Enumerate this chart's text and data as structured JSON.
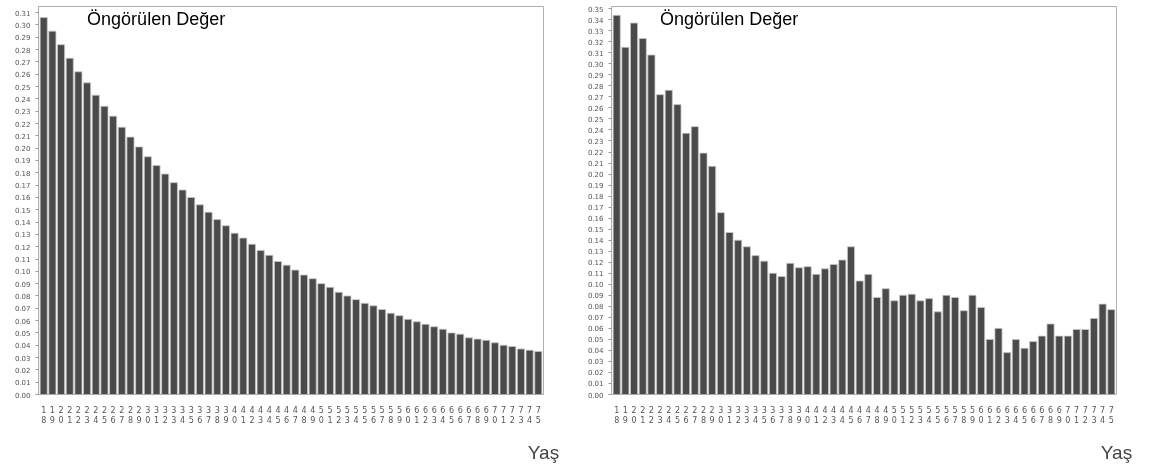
{
  "chart_data": [
    {
      "type": "bar",
      "annotations": [
        "Öngörülen Değer"
      ],
      "xlabel": "Yaş",
      "color": "#4a4a4a",
      "grid": false,
      "categories": [
        "18",
        "19",
        "20",
        "21",
        "22",
        "23",
        "24",
        "25",
        "26",
        "27",
        "28",
        "29",
        "30",
        "31",
        "32",
        "33",
        "34",
        "35",
        "36",
        "37",
        "38",
        "39",
        "40",
        "41",
        "42",
        "43",
        "44",
        "45",
        "46",
        "47",
        "48",
        "49",
        "50",
        "51",
        "52",
        "53",
        "54",
        "55",
        "56",
        "57",
        "58",
        "59",
        "60",
        "61",
        "62",
        "63",
        "64",
        "65",
        "66",
        "67",
        "68",
        "69",
        "70",
        "71",
        "72",
        "73",
        "74",
        "75"
      ],
      "values": [
        0.306,
        0.295,
        0.284,
        0.273,
        0.262,
        0.253,
        0.243,
        0.234,
        0.226,
        0.217,
        0.209,
        0.201,
        0.193,
        0.186,
        0.179,
        0.172,
        0.166,
        0.16,
        0.154,
        0.148,
        0.142,
        0.137,
        0.131,
        0.127,
        0.122,
        0.117,
        0.113,
        0.108,
        0.105,
        0.101,
        0.097,
        0.094,
        0.09,
        0.087,
        0.083,
        0.08,
        0.077,
        0.074,
        0.072,
        0.069,
        0.066,
        0.064,
        0.061,
        0.059,
        0.057,
        0.055,
        0.053,
        0.05,
        0.049,
        0.046,
        0.045,
        0.044,
        0.042,
        0.04,
        0.039,
        0.037,
        0.036,
        0.035
      ],
      "ylim": [
        0,
        0.315
      ],
      "yticks": [
        {
          "value": 0,
          "label": "0.00"
        },
        {
          "value": 0.01,
          "label": "0.01"
        },
        {
          "value": 0.02,
          "label": "0.02"
        },
        {
          "value": 0.03,
          "label": "0.03"
        },
        {
          "value": 0.04,
          "label": "0.04"
        },
        {
          "value": 0.05,
          "label": "0.05"
        },
        {
          "value": 0.06,
          "label": "0.06"
        },
        {
          "value": 0.07,
          "label": "0.07"
        },
        {
          "value": 0.08,
          "label": "0.08"
        },
        {
          "value": 0.09,
          "label": "0.09"
        },
        {
          "value": 0.1,
          "label": "0.10"
        },
        {
          "value": 0.11,
          "label": "0.11"
        },
        {
          "value": 0.12,
          "label": "0.12"
        },
        {
          "value": 0.13,
          "label": "0.13"
        },
        {
          "value": 0.14,
          "label": "0.14"
        },
        {
          "value": 0.15,
          "label": "0.15"
        },
        {
          "value": 0.16,
          "label": "0.16"
        },
        {
          "value": 0.17,
          "label": "0.17"
        },
        {
          "value": 0.18,
          "label": "0.18"
        },
        {
          "value": 0.19,
          "label": "0.19"
        },
        {
          "value": 0.2,
          "label": "0.20"
        },
        {
          "value": 0.21,
          "label": "0.21"
        },
        {
          "value": 0.22,
          "label": "0.22"
        },
        {
          "value": 0.23,
          "label": "0.23"
        },
        {
          "value": 0.24,
          "label": "0.24"
        },
        {
          "value": 0.25,
          "label": "0.25"
        },
        {
          "value": 0.26,
          "label": "0.26"
        },
        {
          "value": 0.27,
          "label": "0.27"
        },
        {
          "value": 0.28,
          "label": "0.28"
        },
        {
          "value": 0.29,
          "label": "0.29"
        },
        {
          "value": 0.3,
          "label": "0.30"
        },
        {
          "value": 0.31,
          "label": "0.31"
        }
      ]
    },
    {
      "type": "bar",
      "annotations": [
        "Öngörülen Değer"
      ],
      "xlabel": "Yaş",
      "color": "#4a4a4a",
      "grid": false,
      "categories": [
        "18",
        "19",
        "20",
        "21",
        "22",
        "23",
        "24",
        "25",
        "26",
        "27",
        "28",
        "29",
        "30",
        "31",
        "32",
        "33",
        "34",
        "35",
        "36",
        "37",
        "38",
        "39",
        "40",
        "41",
        "42",
        "43",
        "44",
        "45",
        "46",
        "47",
        "48",
        "49",
        "50",
        "51",
        "52",
        "53",
        "54",
        "55",
        "56",
        "57",
        "58",
        "59",
        "60",
        "61",
        "62",
        "63",
        "64",
        "65",
        "66",
        "67",
        "68",
        "69",
        "70",
        "71",
        "72",
        "73",
        "74",
        "75"
      ],
      "values": [
        0.344,
        0.315,
        0.337,
        0.323,
        0.308,
        0.272,
        0.276,
        0.263,
        0.237,
        0.243,
        0.219,
        0.207,
        0.165,
        0.147,
        0.14,
        0.134,
        0.126,
        0.121,
        0.11,
        0.107,
        0.119,
        0.115,
        0.116,
        0.109,
        0.114,
        0.118,
        0.122,
        0.134,
        0.103,
        0.109,
        0.088,
        0.096,
        0.085,
        0.09,
        0.091,
        0.085,
        0.087,
        0.075,
        0.09,
        0.088,
        0.076,
        0.09,
        0.079,
        0.05,
        0.06,
        0.038,
        0.05,
        0.042,
        0.048,
        0.053,
        0.064,
        0.053,
        0.053,
        0.059,
        0.059,
        0.069,
        0.082,
        0.077
      ],
      "ylim": [
        0,
        0.352
      ],
      "yticks": [
        {
          "value": 0,
          "label": "0.00"
        },
        {
          "value": 0.01,
          "label": "0.01"
        },
        {
          "value": 0.02,
          "label": "0.02"
        },
        {
          "value": 0.03,
          "label": "0.03"
        },
        {
          "value": 0.04,
          "label": "0.04"
        },
        {
          "value": 0.05,
          "label": "0.05"
        },
        {
          "value": 0.06,
          "label": "0.06"
        },
        {
          "value": 0.07,
          "label": "0.07"
        },
        {
          "value": 0.08,
          "label": "0.08"
        },
        {
          "value": 0.09,
          "label": "0.09"
        },
        {
          "value": 0.1,
          "label": "0.10"
        },
        {
          "value": 0.11,
          "label": "0.11"
        },
        {
          "value": 0.12,
          "label": "0.12"
        },
        {
          "value": 0.13,
          "label": "0.13"
        },
        {
          "value": 0.14,
          "label": "0.14"
        },
        {
          "value": 0.15,
          "label": "0.15"
        },
        {
          "value": 0.16,
          "label": "0.16"
        },
        {
          "value": 0.17,
          "label": "0.17"
        },
        {
          "value": 0.18,
          "label": "0.18"
        },
        {
          "value": 0.19,
          "label": "0.19"
        },
        {
          "value": 0.2,
          "label": "0.20"
        },
        {
          "value": 0.21,
          "label": "0.21"
        },
        {
          "value": 0.22,
          "label": "0.22"
        },
        {
          "value": 0.23,
          "label": "0.23"
        },
        {
          "value": 0.24,
          "label": "0.24"
        },
        {
          "value": 0.25,
          "label": "0.25"
        },
        {
          "value": 0.26,
          "label": "0.26"
        },
        {
          "value": 0.27,
          "label": "0.27"
        },
        {
          "value": 0.28,
          "label": "0.28"
        },
        {
          "value": 0.29,
          "label": "0.29"
        },
        {
          "value": 0.3,
          "label": "0.30"
        },
        {
          "value": 0.31,
          "label": "0.31"
        },
        {
          "value": 0.32,
          "label": "0.32"
        },
        {
          "value": 0.33,
          "label": "0.33"
        },
        {
          "value": 0.34,
          "label": "0.34"
        },
        {
          "value": 0.35,
          "label": "0.35"
        }
      ]
    }
  ]
}
